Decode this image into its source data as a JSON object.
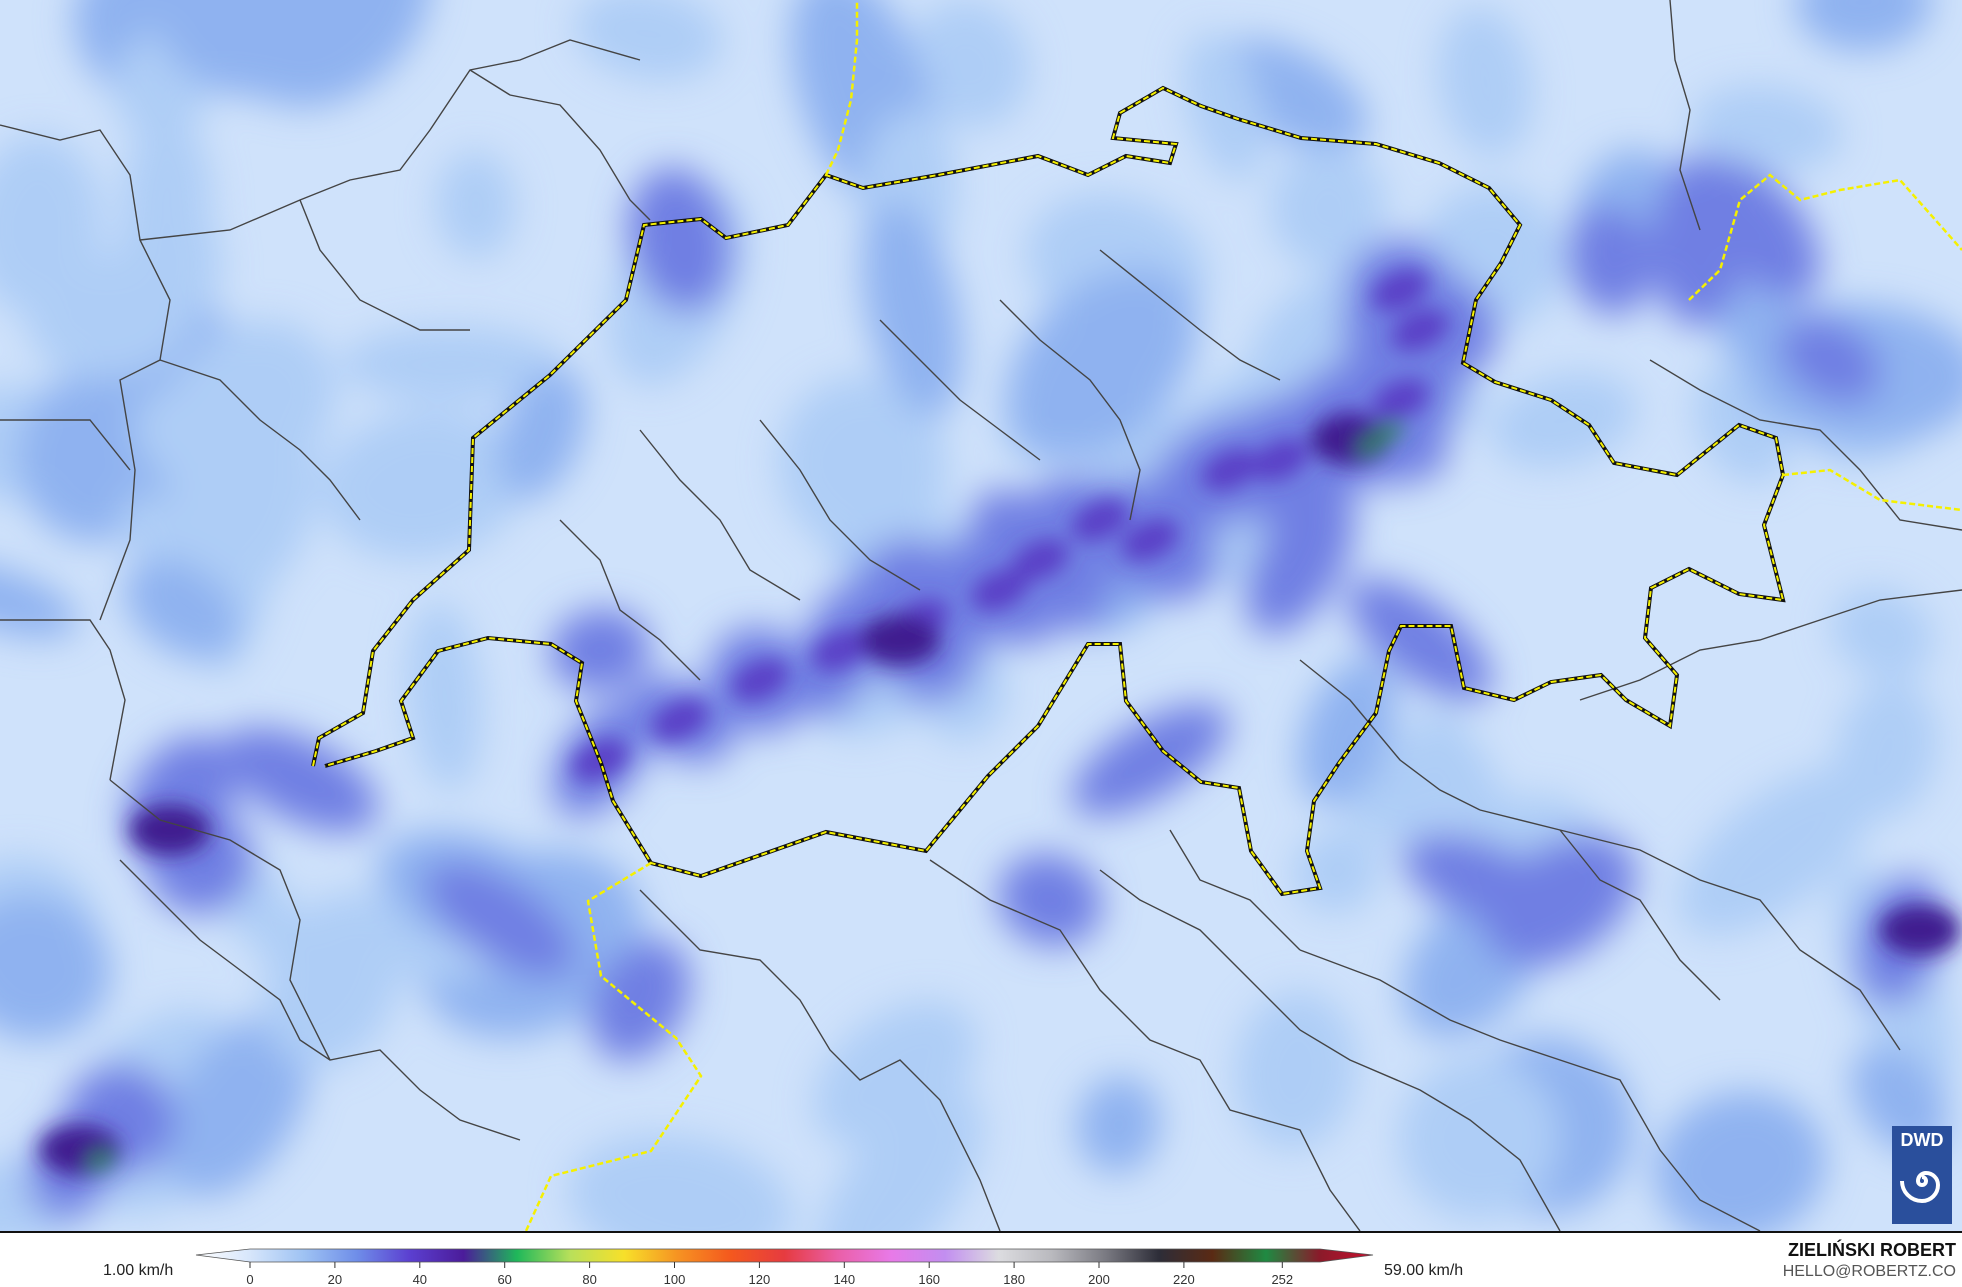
{
  "map": {
    "background_color": "#cfe2fb",
    "intensity_colors": [
      "#aecdf6",
      "#8fb2f0",
      "#6f7fe3",
      "#5a3fc6",
      "#3f1f8f",
      "#2f8a55"
    ],
    "border_color": "#f5f000",
    "logo": {
      "text": "DWD",
      "icon": "dwd-spiral-icon"
    }
  },
  "legend": {
    "min_label": "1.00 km/h",
    "max_label": "59.00 km/h",
    "ticks": [
      "0",
      "20",
      "40",
      "60",
      "80",
      "100",
      "120",
      "140",
      "160",
      "180",
      "200",
      "220",
      "252"
    ],
    "colors": [
      "#ffffff",
      "#d7e6fb",
      "#9fc3f3",
      "#6f8ee9",
      "#5b3fd0",
      "#4b1c9a",
      "#1fb85a",
      "#b9e05a",
      "#f7e02a",
      "#f69322",
      "#f4581e",
      "#e63b40",
      "#ea5fa8",
      "#e87ae8",
      "#c28ef0",
      "#dcdce0",
      "#b9b9be",
      "#7a7a82",
      "#2d2d38",
      "#5a2a14",
      "#1f8a42",
      "#8a1a2a",
      "#c8102e"
    ]
  },
  "credits": {
    "author": "ZIELIŃSKI ROBERT",
    "email": "HELLO@ROBERTZ.CO"
  }
}
